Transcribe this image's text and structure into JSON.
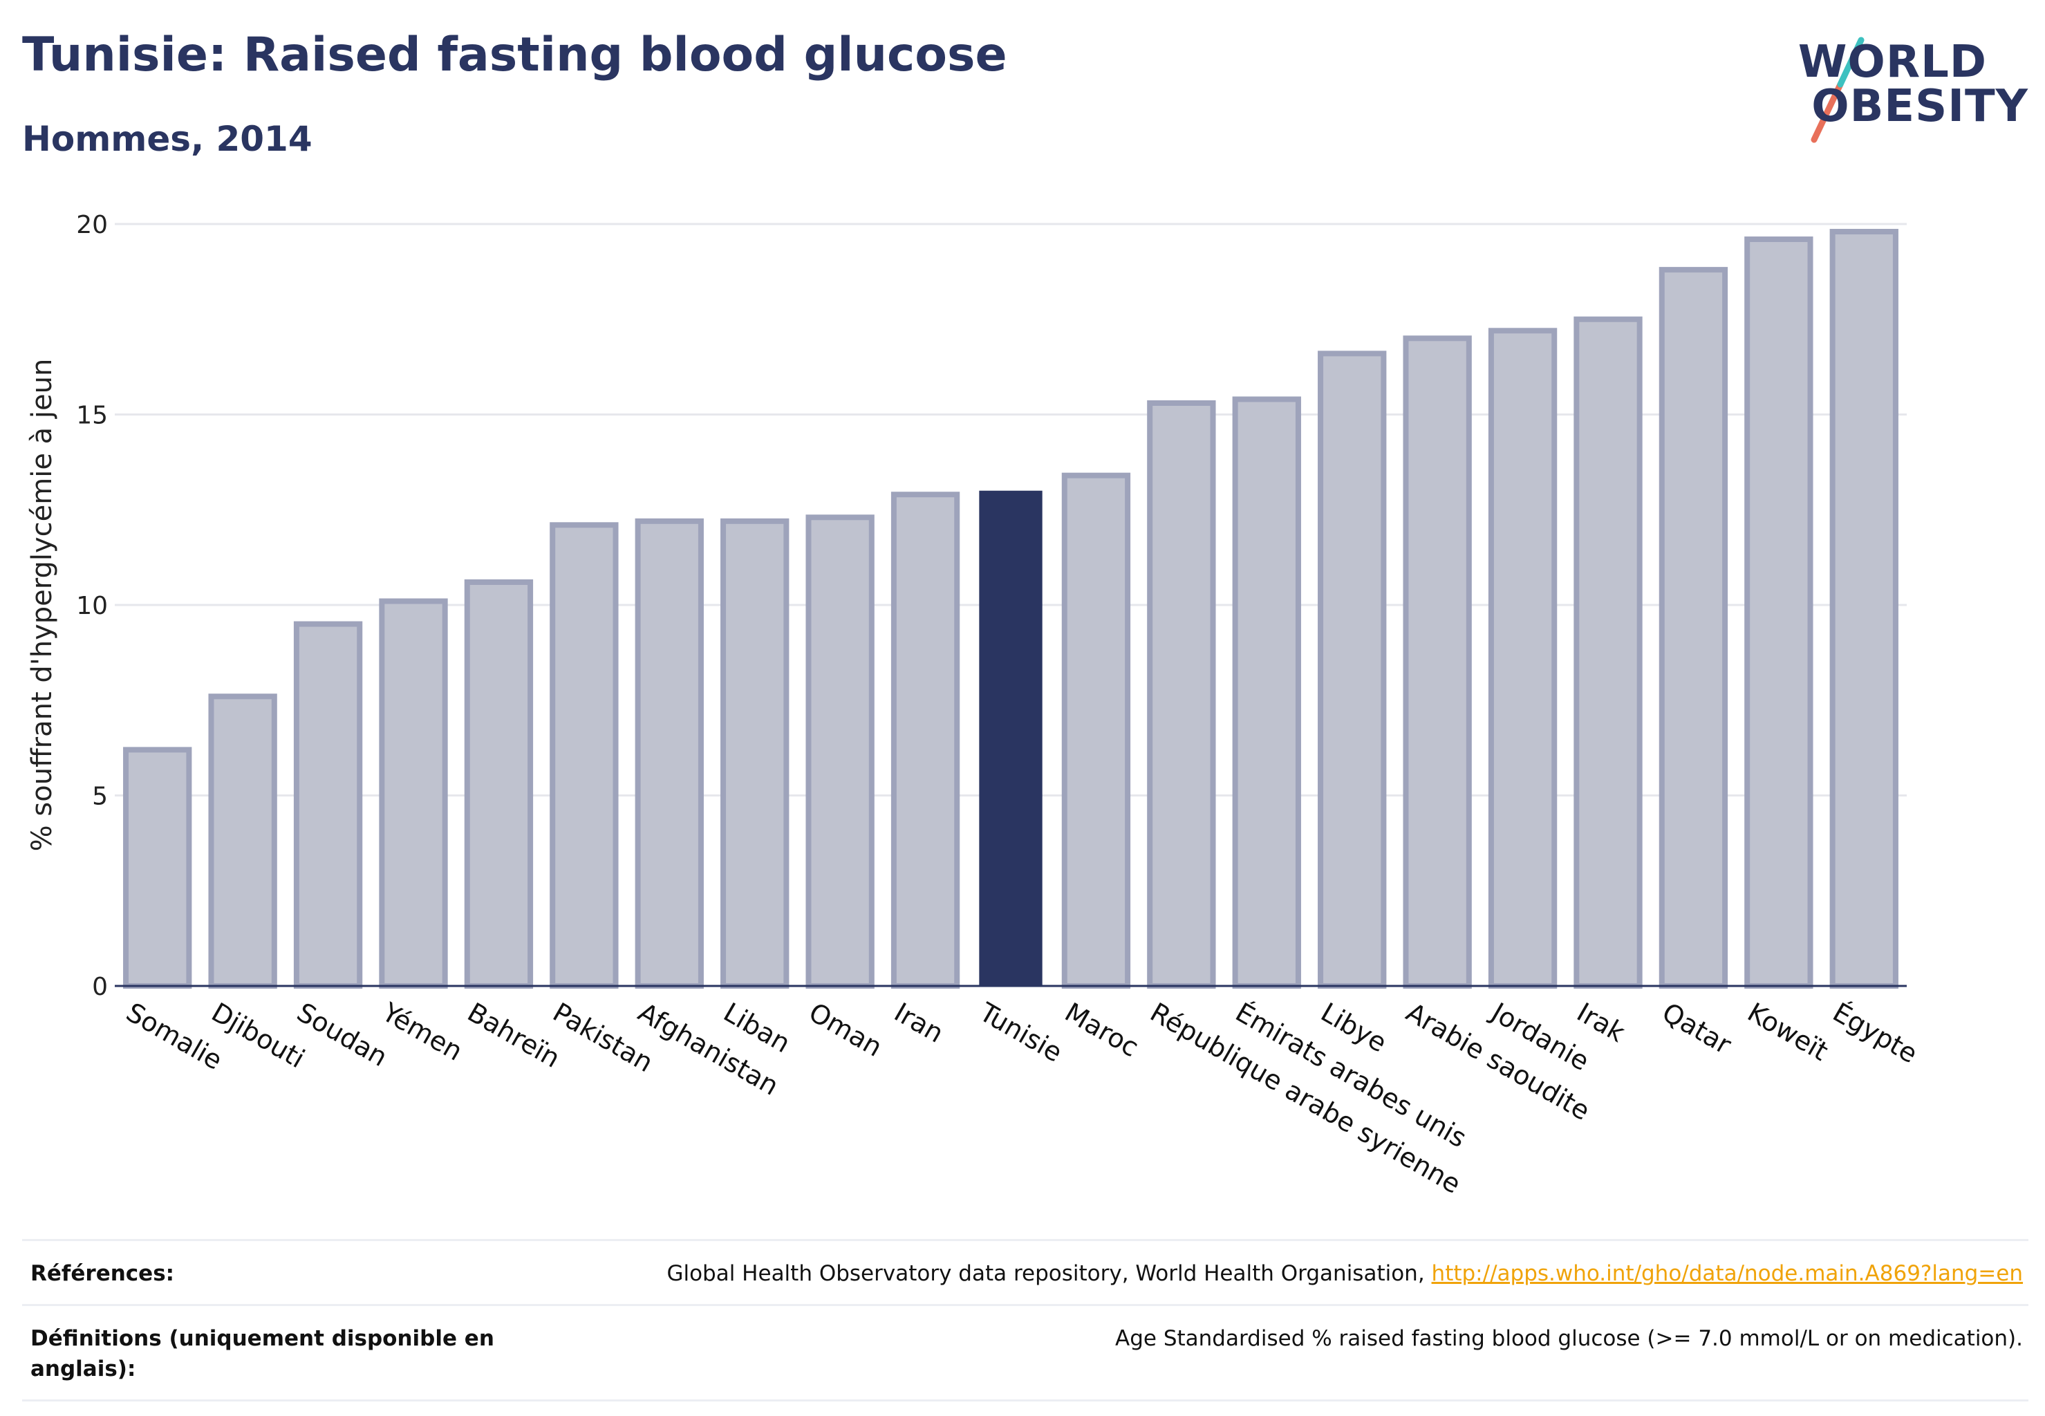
{
  "header": {
    "title": "Tunisie: Raised fasting blood glucose",
    "subtitle": "Hommes, 2014"
  },
  "logo": {
    "line1": "WORLD",
    "line2": "OBESITY",
    "slash_colors": [
      "#e8705a",
      "#3ec1c0"
    ]
  },
  "colors": {
    "bar": "#bfc2cf",
    "bar_border": "#9ea3bb",
    "highlight": "#2a3561",
    "grid": "#e6e7ec",
    "axis": "#2a3561"
  },
  "chart_data": {
    "type": "bar",
    "ylabel": "% souffrant d'hyperglycémie à jeun",
    "ylim": [
      0,
      20
    ],
    "yticks": [
      0,
      5,
      10,
      15,
      20
    ],
    "grid": true,
    "highlight": "Tunisie",
    "categories": [
      "Somalie",
      "Djibouti",
      "Soudan",
      "Yémen",
      "Bahreïn",
      "Pakistan",
      "Afghanistan",
      "Liban",
      "Oman",
      "Iran",
      "Tunisie",
      "Maroc",
      "République arabe syrienne",
      "Émirats arabes unis",
      "Libye",
      "Arabie saoudite",
      "Jordanie",
      "Irak",
      "Qatar",
      "Koweït",
      "Égypte"
    ],
    "values": [
      6.2,
      7.6,
      9.5,
      10.1,
      10.6,
      12.1,
      12.2,
      12.2,
      12.3,
      12.9,
      13.0,
      13.4,
      15.3,
      15.4,
      16.6,
      17.0,
      17.2,
      17.5,
      18.8,
      19.6,
      19.8
    ]
  },
  "footer": {
    "references_label": "Références:",
    "references_text": "Global Health Observatory data repository, World Health Organisation, ",
    "references_link": "http://apps.who.int/gho/data/node.main.A869?lang=en",
    "definitions_label": "Définitions (uniquement disponible en anglais):",
    "definitions_text": "Age Standardised % raised fasting blood glucose (>= 7.0 mmol/L or on medication)."
  }
}
